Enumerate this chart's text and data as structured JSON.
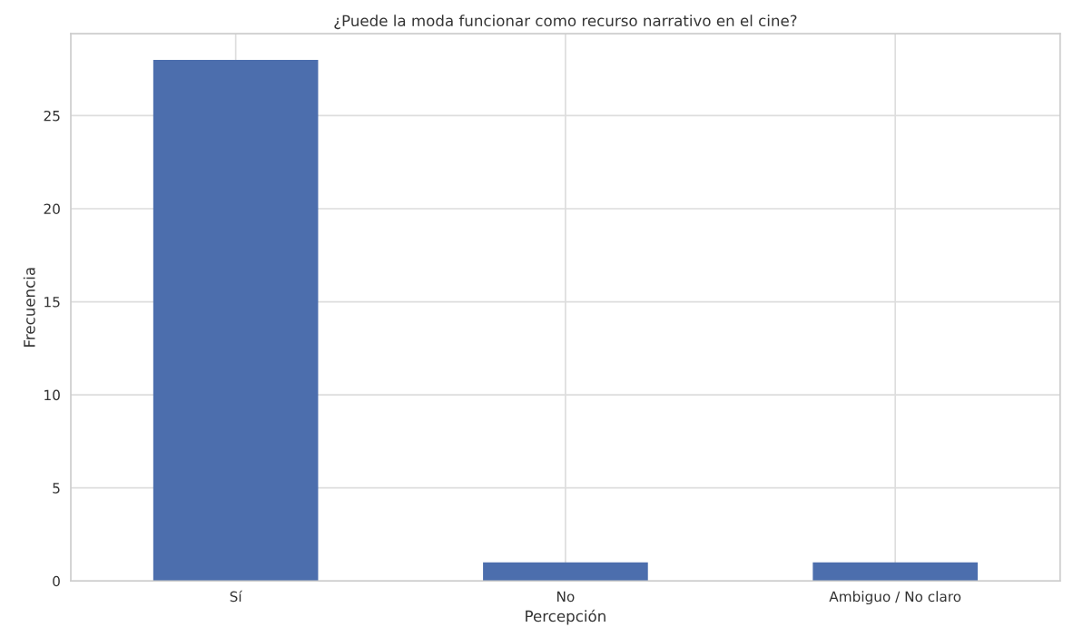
{
  "chart_data": {
    "type": "bar",
    "title": "¿Puede la moda funcionar como recurso narrativo en el cine?",
    "xlabel": "Percepción",
    "ylabel": "Frecuencia",
    "categories": [
      "Sí",
      "No",
      "Ambiguo / No claro"
    ],
    "values": [
      28,
      1,
      1
    ],
    "color": "#4c6ead",
    "ylim": [
      0,
      29.4
    ],
    "yticks": [
      0,
      5,
      10,
      15,
      20,
      25
    ],
    "grid": true,
    "legend": false
  }
}
